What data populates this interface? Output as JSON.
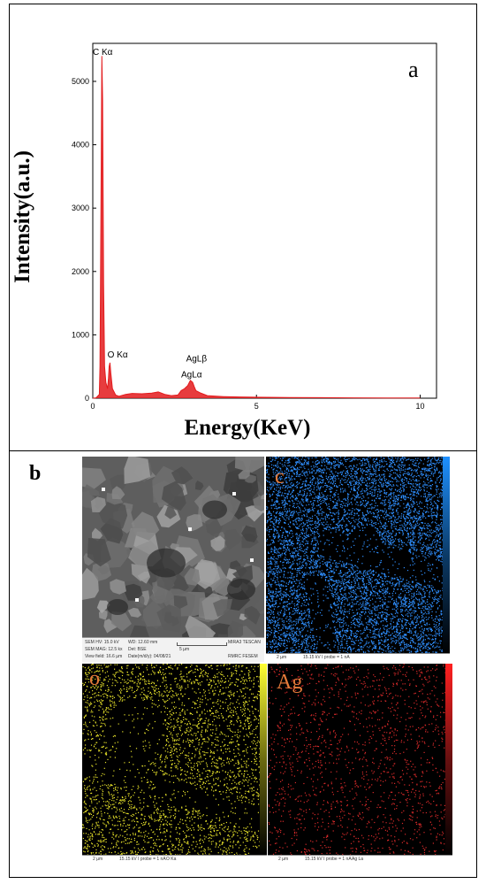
{
  "figure": {
    "panel_a_label": "a",
    "panel_b_label": "b"
  },
  "chart_data": {
    "type": "line",
    "title": "",
    "xlabel": "Energy(KeV)",
    "ylabel": "Intensity(a.u.)",
    "xlim": [
      0,
      10.5
    ],
    "ylim": [
      0,
      5600
    ],
    "xticks": [
      0,
      5,
      10
    ],
    "yticks": [
      0,
      1000,
      2000,
      3000,
      4000,
      5000
    ],
    "grid": false,
    "color": "#e31a1c",
    "series": [
      {
        "x": [
          0.0,
          0.1,
          0.2,
          0.22,
          0.25,
          0.277,
          0.3,
          0.33,
          0.36,
          0.4,
          0.45,
          0.48,
          0.5,
          0.525,
          0.55,
          0.6,
          0.7,
          0.8,
          1.0,
          1.2,
          1.5,
          1.8,
          2.0,
          2.2,
          2.4,
          2.6,
          2.7,
          2.8,
          2.9,
          2.98,
          3.05,
          3.1,
          3.15,
          3.3,
          3.5,
          4.0,
          4.5,
          5.0,
          6.0,
          7.0,
          8.0,
          9.0,
          10.0
        ],
        "y": [
          0,
          5,
          60,
          500,
          3000,
          5400,
          4700,
          1800,
          500,
          250,
          150,
          320,
          500,
          560,
          400,
          150,
          50,
          30,
          60,
          75,
          70,
          80,
          100,
          60,
          40,
          50,
          120,
          150,
          200,
          280,
          250,
          180,
          120,
          80,
          40,
          25,
          20,
          15,
          10,
          8,
          6,
          4,
          3
        ]
      }
    ],
    "annotations": [
      "C Kα",
      "O Kα",
      "AgLβ",
      "AgLα"
    ]
  },
  "maps": {
    "c_label": "c",
    "o_label": "o",
    "ag_label": "Ag",
    "c_color": "#2f8fff",
    "o_color": "#e5e02a",
    "ag_color": "#d82a2a",
    "c_scale": "2 µm",
    "o_scale": "2 µm",
    "ag_scale": "2 µm",
    "beam_info": "15.15 kV   I probe = 1 nA",
    "o_line": "O Ka",
    "ag_line": "Ag La"
  },
  "sem": {
    "hv": "SEM HV: 15.0 kV",
    "wd": "WD: 12.60 mm",
    "mag": "SEM MAG: 12.5 kx",
    "det": "Det: BSE",
    "view": "View field: 16.6 µm",
    "date": "Date(m/d/y): 04/08/21",
    "scale": "5 µm",
    "maker": "MIRA3 TESCAN",
    "lab": "RMRC  FESEM"
  }
}
